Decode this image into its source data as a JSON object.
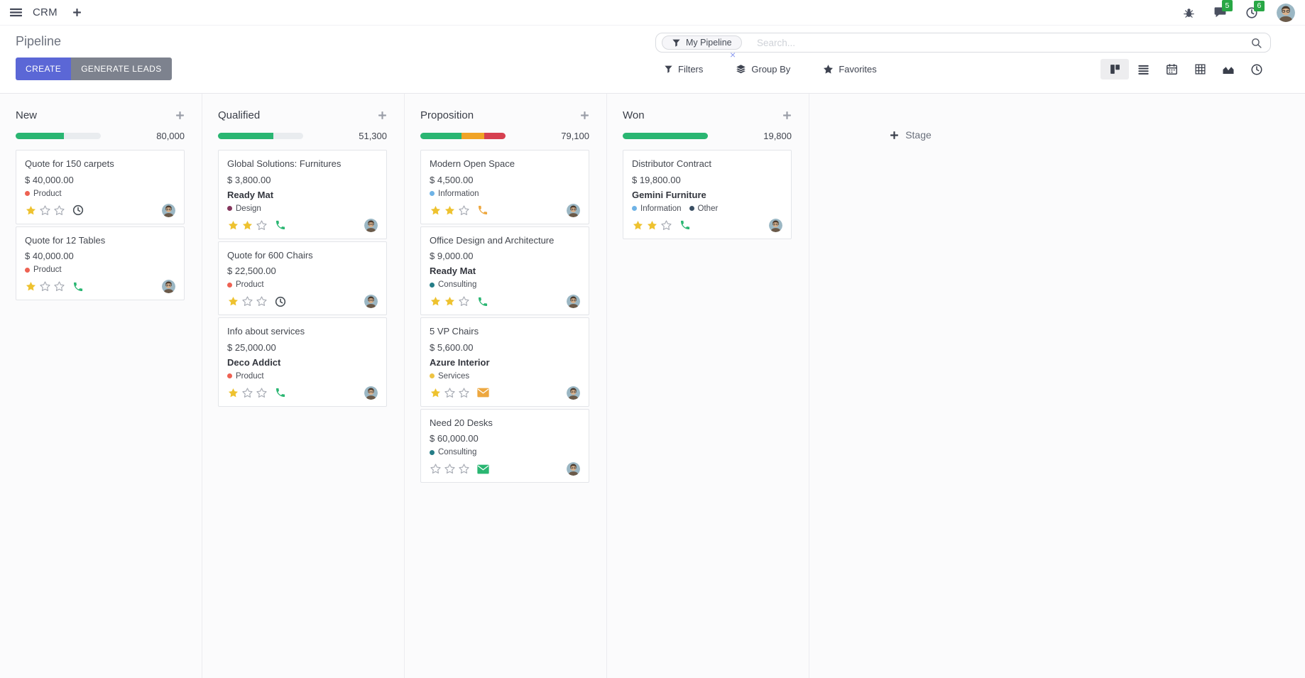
{
  "nav": {
    "app_name": "CRM",
    "messages_badge": "5",
    "activities_badge": "6"
  },
  "control_panel": {
    "title": "Pipeline",
    "create_label": "CREATE",
    "generate_leads_label": "GENERATE LEADS",
    "search": {
      "facet": "My Pipeline",
      "remove_glyph": "×",
      "placeholder": "Search..."
    },
    "menus": {
      "filters": "Filters",
      "group_by": "Group By",
      "favorites": "Favorites"
    }
  },
  "board": {
    "add_stage_label": "Stage",
    "stages": [
      {
        "name": "New",
        "total": "80,000",
        "progress": [
          {
            "hex": "#2ab672",
            "pct": 57
          }
        ],
        "cards": [
          {
            "title": "Quote for 150 carpets",
            "amount": "$ 40,000.00",
            "company": "",
            "tags": [
              {
                "label": "Product",
                "hex": "#ee6253"
              }
            ],
            "stars": 1,
            "activity": {
              "icon": "clock-icon",
              "hex": "#495057"
            }
          },
          {
            "title": "Quote for 12 Tables",
            "amount": "$ 40,000.00",
            "company": "",
            "tags": [
              {
                "label": "Product",
                "hex": "#ee6253"
              }
            ],
            "stars": 1,
            "activity": {
              "icon": "phone-icon",
              "hex": "#2ab672"
            }
          }
        ]
      },
      {
        "name": "Qualified",
        "total": "51,300",
        "progress": [
          {
            "hex": "#2ab672",
            "pct": 65
          }
        ],
        "cards": [
          {
            "title": "Global Solutions: Furnitures",
            "amount": "$ 3,800.00",
            "company": "Ready Mat",
            "tags": [
              {
                "label": "Design",
                "hex": "#84365d"
              }
            ],
            "stars": 2,
            "activity": {
              "icon": "phone-icon",
              "hex": "#2ab672"
            }
          },
          {
            "title": "Quote for 600 Chairs",
            "amount": "$ 22,500.00",
            "company": "",
            "tags": [
              {
                "label": "Product",
                "hex": "#ee6253"
              }
            ],
            "stars": 1,
            "activity": {
              "icon": "clock-icon",
              "hex": "#495057"
            }
          },
          {
            "title": "Info about services",
            "amount": "$ 25,000.00",
            "company": "Deco Addict",
            "tags": [
              {
                "label": "Product",
                "hex": "#ee6253"
              }
            ],
            "stars": 1,
            "activity": {
              "icon": "phone-icon",
              "hex": "#2ab672"
            }
          }
        ]
      },
      {
        "name": "Proposition",
        "total": "79,100",
        "progress": [
          {
            "hex": "#2ab672",
            "pct": 48
          },
          {
            "hex": "#f0a325",
            "pct": 27
          },
          {
            "hex": "#d64050",
            "pct": 25
          }
        ],
        "cards": [
          {
            "title": "Modern Open Space",
            "amount": "$ 4,500.00",
            "company": "",
            "tags": [
              {
                "label": "Information",
                "hex": "#6fb3e6"
              }
            ],
            "stars": 2,
            "activity": {
              "icon": "phone-icon",
              "hex": "#eda73f"
            }
          },
          {
            "title": "Office Design and Architecture",
            "amount": "$ 9,000.00",
            "company": "Ready Mat",
            "tags": [
              {
                "label": "Consulting",
                "hex": "#257d87"
              }
            ],
            "stars": 2,
            "activity": {
              "icon": "phone-icon",
              "hex": "#2ab672"
            }
          },
          {
            "title": "5 VP Chairs",
            "amount": "$ 5,600.00",
            "company": "Azure Interior",
            "tags": [
              {
                "label": "Services",
                "hex": "#eec343"
              }
            ],
            "stars": 1,
            "activity": {
              "icon": "envelope-icon",
              "hex": "#eda73f"
            }
          },
          {
            "title": "Need 20 Desks",
            "amount": "$ 60,000.00",
            "company": "",
            "tags": [
              {
                "label": "Consulting",
                "hex": "#257d87"
              }
            ],
            "stars": 0,
            "activity": {
              "icon": "envelope-icon",
              "hex": "#2ab672"
            }
          }
        ]
      },
      {
        "name": "Won",
        "total": "19,800",
        "progress": [
          {
            "hex": "#2ab672",
            "pct": 100
          }
        ],
        "cards": [
          {
            "title": "Distributor Contract",
            "amount": "$ 19,800.00",
            "company": "Gemini Furniture",
            "tags": [
              {
                "label": "Information",
                "hex": "#6fb3e6"
              },
              {
                "label": "Other",
                "hex": "#3a4f63"
              }
            ],
            "stars": 2,
            "activity": {
              "icon": "phone-icon",
              "hex": "#2ab672"
            }
          }
        ]
      }
    ]
  },
  "colors": {
    "primary_button": "#5b67d6",
    "secondary_button": "#7d828e",
    "badge_green": "#28a745",
    "progress_green": "#2ab672",
    "progress_orange": "#f0a325",
    "progress_red": "#d64050",
    "star_gold": "#eec22f"
  }
}
